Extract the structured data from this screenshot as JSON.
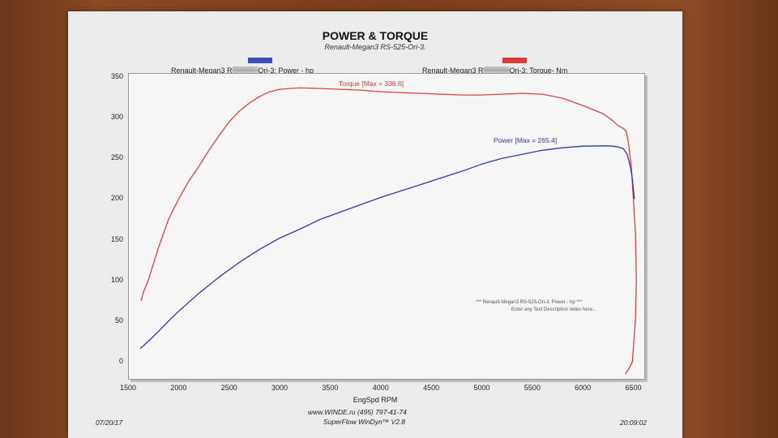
{
  "chart_data": {
    "type": "line",
    "title": "POWER & TORQUE",
    "subtitle": "Renault-Megan3 RS-525-Ori-3.",
    "xlabel": "EngSpd  RPM",
    "ylabel": "",
    "xlim": [
      1500,
      6600
    ],
    "ylim": [
      -20,
      355
    ],
    "xticks": [
      "1500",
      "2000",
      "2500",
      "3000",
      "3500",
      "4000",
      "4500",
      "5000",
      "5500",
      "6000",
      "6500"
    ],
    "yticks": [
      "0",
      "50",
      "100",
      "150",
      "200",
      "250",
      "300",
      "350"
    ],
    "legend": {
      "power_label": "Renault-Megan3 R▒▒▒▒▒Ori-3: Power -  hp",
      "torque_label": "Renault-Megan3 R▒▒▒▒▒Ori-3: Torque-  Nm"
    },
    "annotations": {
      "torque_max": "Torque [Max = 336.6]",
      "power_max": "Power  [Max = 265.4]"
    },
    "note_line1": "*** Renault-Megan3 RS-525-Ori-3: Power -  hp  ***",
    "note_line2": "Enter any Test Description notes here...",
    "grid": false,
    "series": [
      {
        "name": "Torque",
        "color": "#d9433f",
        "x": [
          1630,
          1650,
          1700,
          1800,
          1900,
          2000,
          2100,
          2200,
          2300,
          2400,
          2500,
          2600,
          2700,
          2800,
          2900,
          3000,
          3100,
          3200,
          3400,
          3600,
          3800,
          4000,
          4200,
          4400,
          4600,
          4800,
          5000,
          5200,
          5400,
          5600,
          5800,
          6000,
          6200,
          6300,
          6350,
          6400,
          6430,
          6450,
          6480,
          6500,
          6520,
          6530,
          6520,
          6490,
          6450,
          6420
        ],
        "values": [
          75,
          85,
          100,
          140,
          175,
          200,
          222,
          240,
          260,
          278,
          295,
          308,
          318,
          326,
          332,
          335,
          336,
          336.6,
          336,
          335,
          334,
          332,
          331,
          330,
          329,
          328,
          328,
          329,
          330,
          329,
          324,
          315,
          305,
          296,
          290,
          287,
          283,
          270,
          240,
          200,
          160,
          100,
          50,
          0,
          -10,
          -15
        ]
      },
      {
        "name": "Power",
        "color": "#2f3aa8",
        "x": [
          1620,
          1700,
          1800,
          1900,
          2000,
          2200,
          2400,
          2600,
          2800,
          3000,
          3200,
          3400,
          3600,
          3800,
          4000,
          4200,
          4400,
          4600,
          4800,
          5000,
          5200,
          5400,
          5600,
          5800,
          6000,
          6200,
          6300,
          6350,
          6400,
          6440,
          6470,
          6490,
          6500,
          6510
        ],
        "values": [
          16,
          25,
          37,
          50,
          62,
          84,
          104,
          122,
          138,
          152,
          163,
          175,
          184,
          193,
          202,
          210,
          218,
          226,
          234,
          243,
          250,
          255,
          260,
          263,
          265,
          265.4,
          265,
          264,
          262,
          255,
          240,
          225,
          212,
          200
        ]
      }
    ]
  },
  "footer": {
    "date": "07/20/17",
    "website": "www.WINDE.ru   (495) 797-41-74",
    "software": "SuperFlow WinDyn™ V2.8",
    "time": "20:09:02"
  },
  "colors": {
    "power": "#2f3aa8",
    "torque": "#d9433f"
  }
}
